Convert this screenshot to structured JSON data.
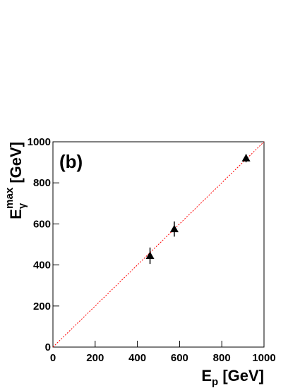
{
  "chart_data": {
    "type": "scatter",
    "annotation": "(b)",
    "xlabel": {
      "main": "E",
      "sub": "p",
      "unit": " [GeV]"
    },
    "ylabel": {
      "main": "E",
      "sub": "γ",
      "sup": "max",
      "unit": " [GeV]"
    },
    "x": [
      460,
      575,
      915
    ],
    "series": [
      {
        "name": "data",
        "color": "#000000",
        "marker": "triangle",
        "values": [
          445,
          575,
          920
        ],
        "yerr": [
          40,
          37,
          20
        ]
      }
    ],
    "xlim": [
      0,
      1000
    ],
    "ylim": [
      0,
      1000
    ],
    "xticks": [
      0,
      200,
      400,
      600,
      800,
      1000
    ],
    "yticks": [
      0,
      200,
      400,
      600,
      800,
      1000
    ],
    "diagonal": {
      "color": "#ff0000",
      "dashed": true
    }
  }
}
